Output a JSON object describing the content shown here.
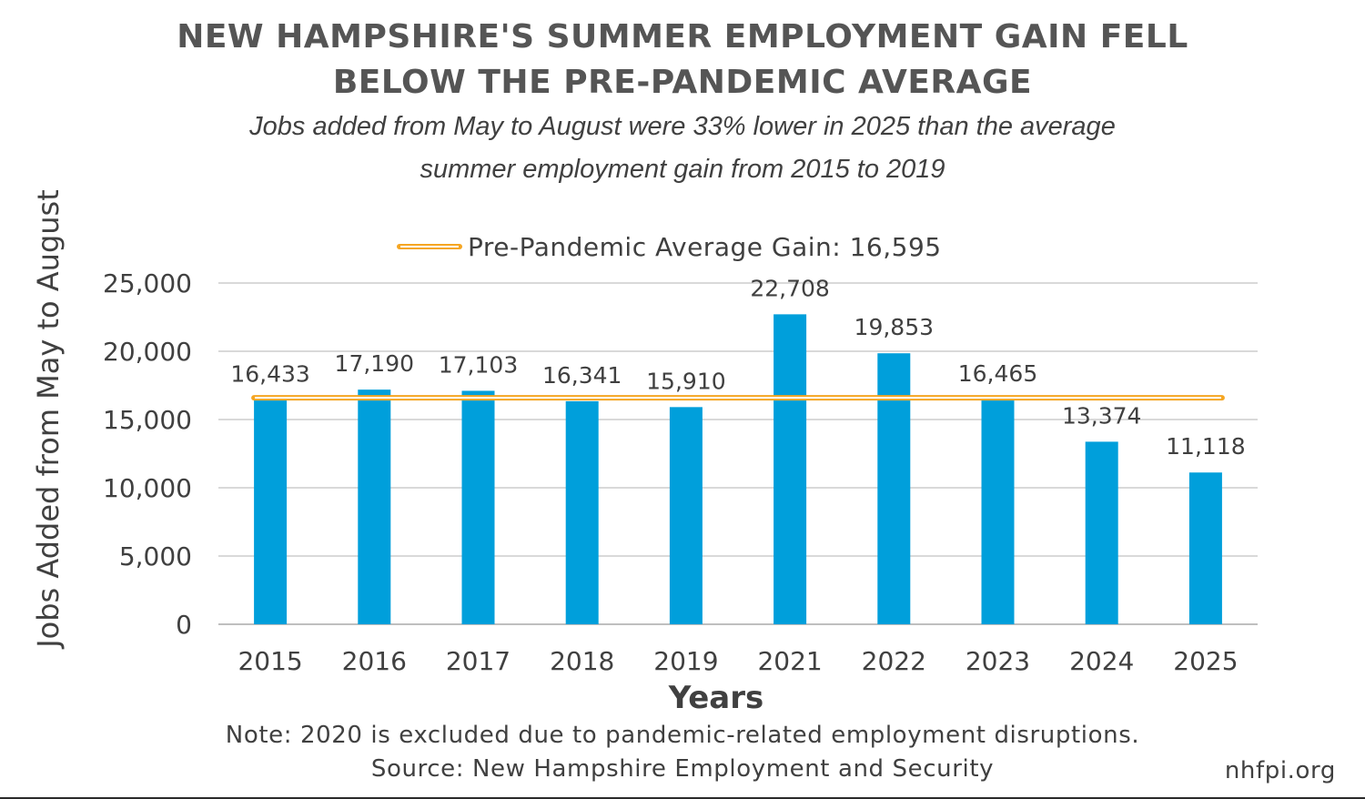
{
  "chart_data": {
    "type": "bar",
    "title_lines": [
      "NEW HAMPSHIRE'S SUMMER EMPLOYMENT GAIN FELL",
      "BELOW THE PRE-PANDEMIC AVERAGE"
    ],
    "subtitle_lines": [
      "Jobs added from May to August were 33% lower in 2025 than the average",
      "summer employment gain from 2015 to 2019"
    ],
    "xlabel": "Years",
    "ylabel": "Jobs Added from May to August",
    "categories": [
      "2015",
      "2016",
      "2017",
      "2018",
      "2019",
      "2021",
      "2022",
      "2023",
      "2024",
      "2025"
    ],
    "values": [
      16433,
      17190,
      17103,
      16341,
      15910,
      22708,
      19853,
      16465,
      13374,
      11118
    ],
    "data_labels": [
      "16,433",
      "17,190",
      "17,103",
      "16,341",
      "15,910",
      "22,708",
      "19,853",
      "16,465",
      "13,374",
      "11,118"
    ],
    "ylim": [
      0,
      25000
    ],
    "yticks": [
      0,
      5000,
      10000,
      15000,
      20000,
      25000
    ],
    "ytick_labels": [
      "0",
      "5,000",
      "10,000",
      "15,000",
      "20,000",
      "25,000"
    ],
    "grid": true,
    "bar_color": "#009FDB",
    "reference_line": {
      "value": 16595,
      "label": "Pre-Pandemic Average Gain: 16,595",
      "color": "#F5A623"
    },
    "legend_placement": "top-center"
  },
  "footer": {
    "note": "Note: 2020 is excluded due to pandemic-related employment disruptions.",
    "source": "Source: New Hampshire Employment and Security",
    "site": "nhfpi.org"
  }
}
